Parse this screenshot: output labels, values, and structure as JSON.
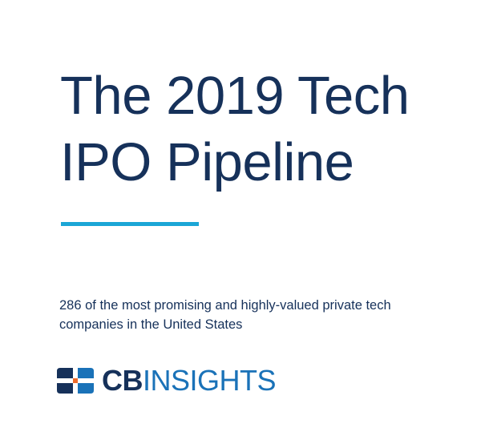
{
  "title": {
    "line1": "The 2019 Tech",
    "line2": "IPO Pipeline"
  },
  "subtitle": {
    "line1": "286 of the most promising and highly-valued private tech",
    "line2": "companies in the United States"
  },
  "logo": {
    "icon": "cb-insights-logo-mark",
    "text_bold": "CB",
    "text_light": "INSIGHTS"
  },
  "colors": {
    "title": "#16315a",
    "accent_rule": "#1ba6d6",
    "logo_dark": "#16315a",
    "logo_blue": "#1a72b8",
    "logo_orange": "#ef6c2b"
  }
}
